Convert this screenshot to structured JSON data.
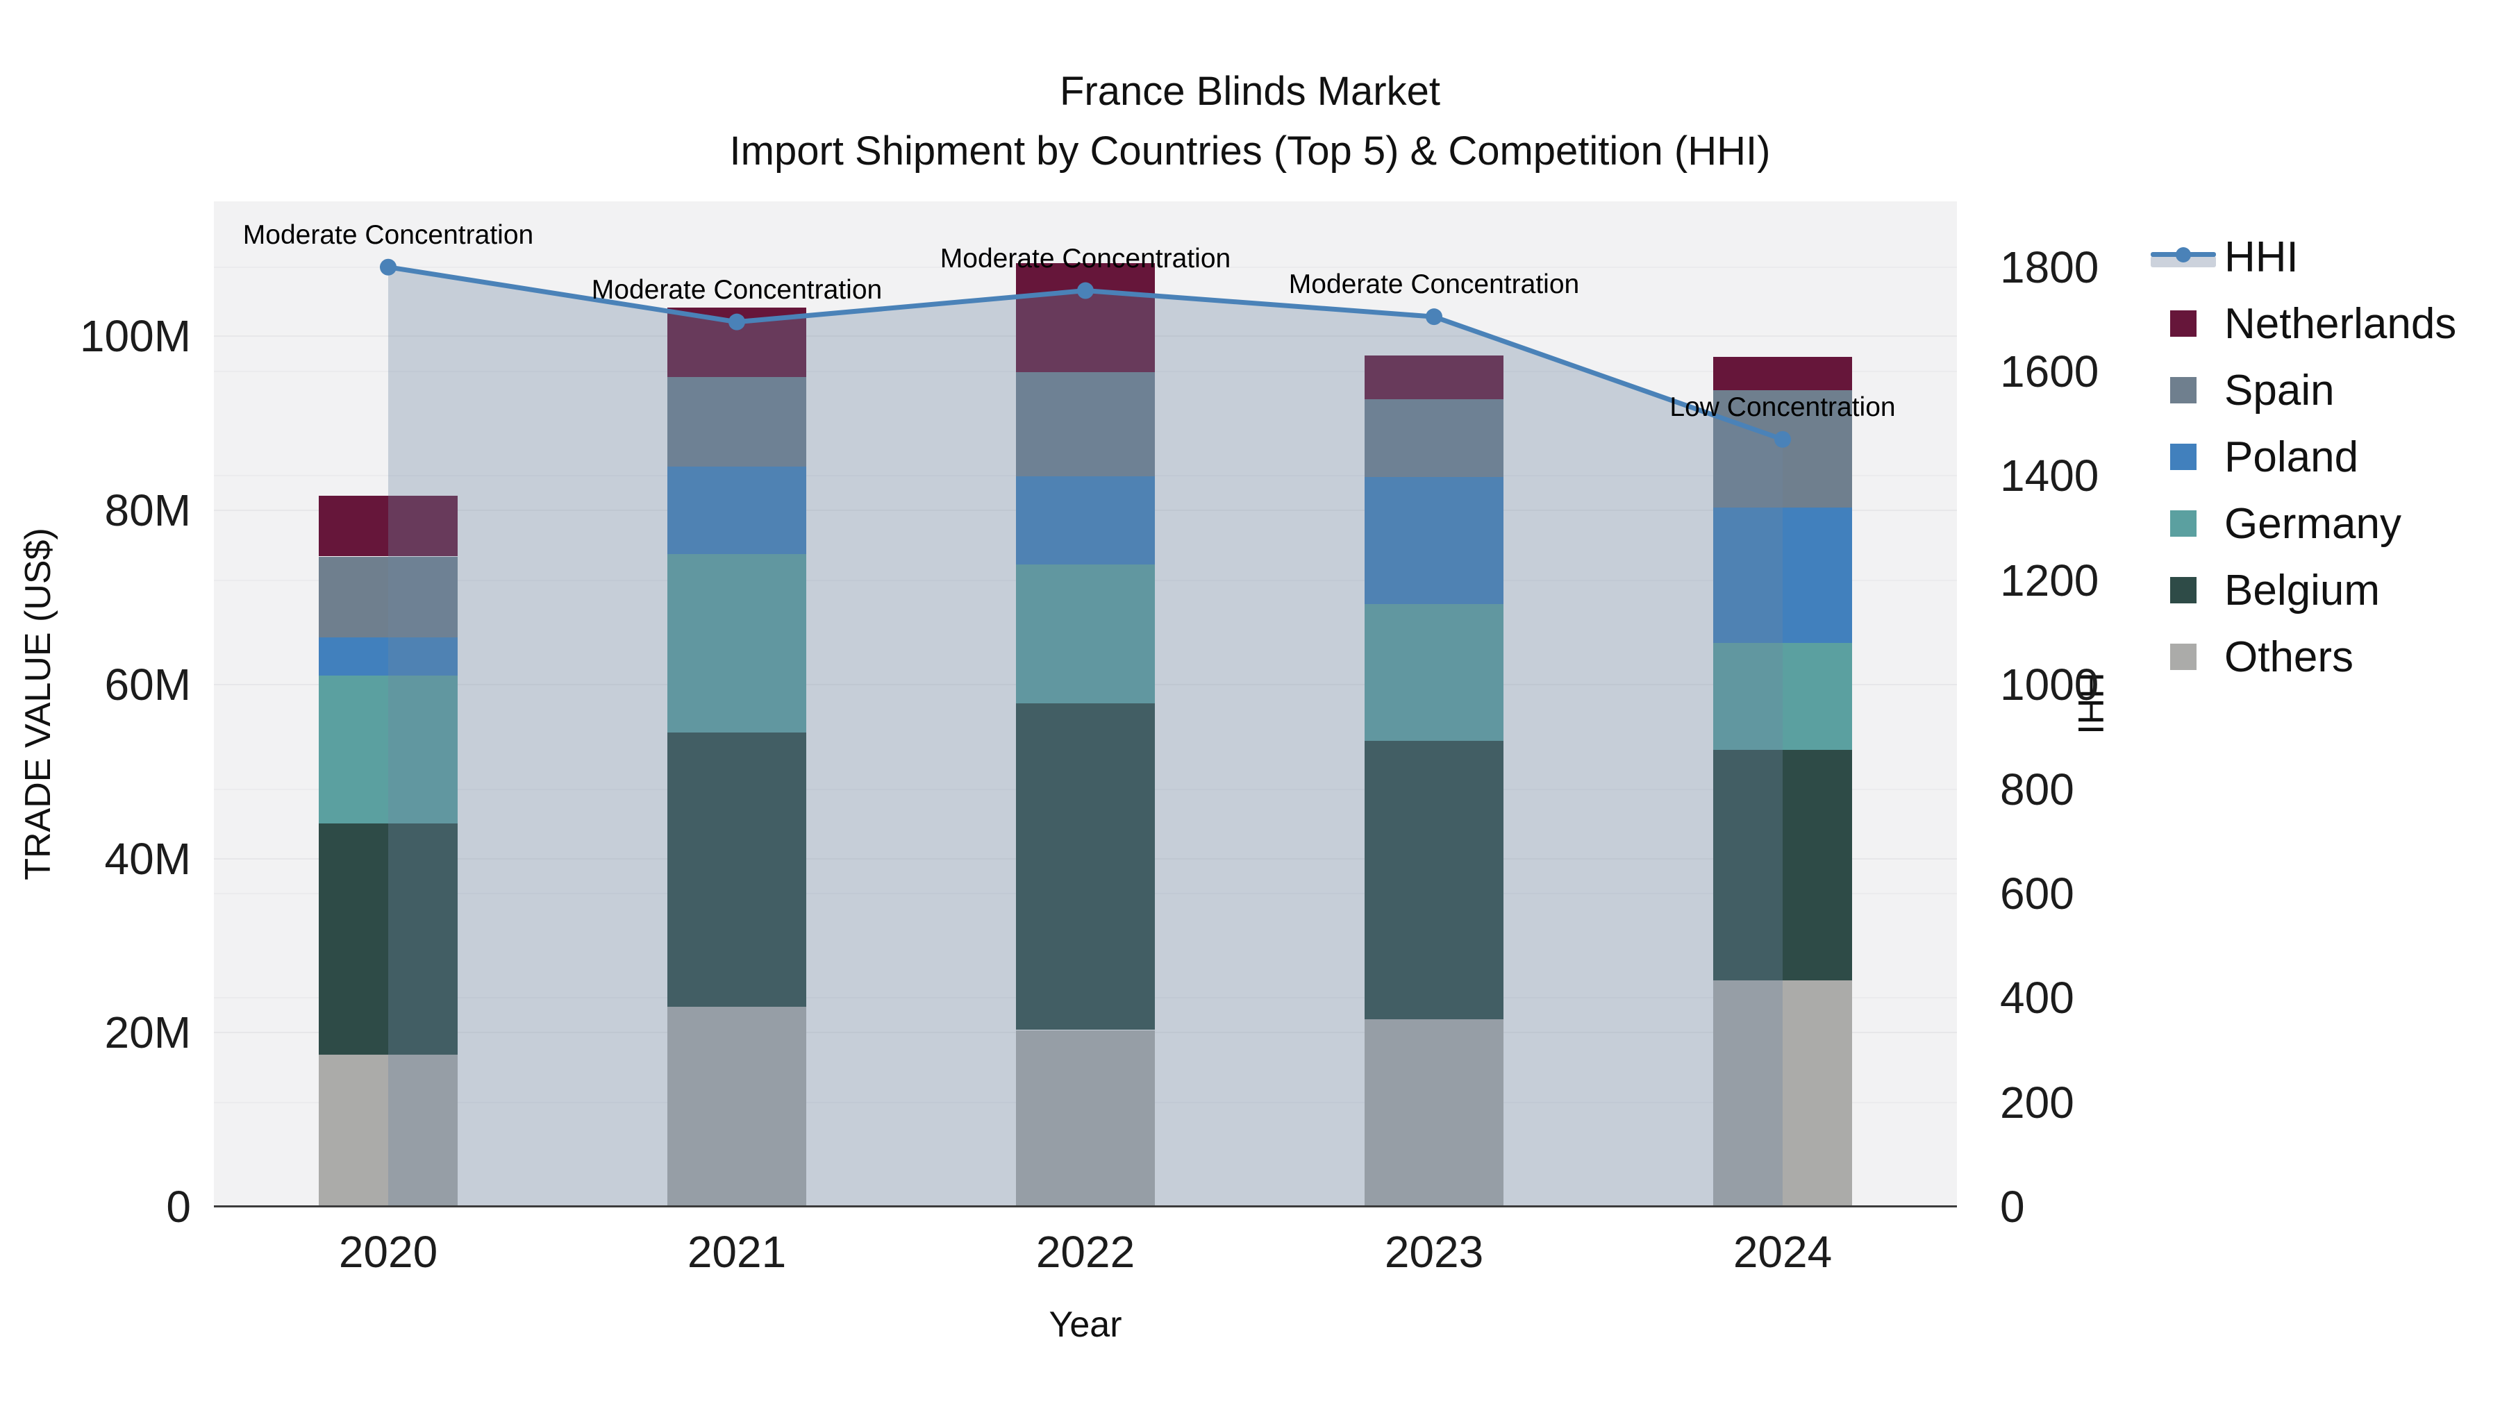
{
  "figure": {
    "title_line1": "France Blinds Market",
    "title_line2": "Import Shipment by Countries (Top 5) & Competition (HHI)"
  },
  "axes": {
    "left": {
      "title": "TRADE VALUE (US$)",
      "ticks": [
        {
          "label": "0",
          "value": 0
        },
        {
          "label": "20M",
          "value": 20
        },
        {
          "label": "40M",
          "value": 40
        },
        {
          "label": "60M",
          "value": 60
        },
        {
          "label": "80M",
          "value": 80
        },
        {
          "label": "100M",
          "value": 100
        }
      ]
    },
    "right": {
      "title": "HHI",
      "ticks": [
        {
          "label": "0",
          "value": 0
        },
        {
          "label": "200",
          "value": 200
        },
        {
          "label": "400",
          "value": 400
        },
        {
          "label": "600",
          "value": 600
        },
        {
          "label": "800",
          "value": 800
        },
        {
          "label": "1000",
          "value": 1000
        },
        {
          "label": "1200",
          "value": 1200
        },
        {
          "label": "1400",
          "value": 1400
        },
        {
          "label": "1600",
          "value": 1600
        },
        {
          "label": "1800",
          "value": 1800
        }
      ]
    },
    "x": {
      "title": "Year",
      "ticks": [
        "2020",
        "2021",
        "2022",
        "2023",
        "2024"
      ]
    }
  },
  "legend": {
    "items": [
      {
        "label": "HHI",
        "type": "line",
        "color": "#4a82b8"
      },
      {
        "label": "Netherlands",
        "type": "swatch",
        "color": "#66163a"
      },
      {
        "label": "Spain",
        "type": "swatch",
        "color": "#6f7f8e"
      },
      {
        "label": "Poland",
        "type": "swatch",
        "color": "#4180bd"
      },
      {
        "label": "Germany",
        "type": "swatch",
        "color": "#5ba0a0"
      },
      {
        "label": "Belgium",
        "type": "swatch",
        "color": "#2e4b47"
      },
      {
        "label": "Others",
        "type": "swatch",
        "color": "#ababa9"
      }
    ]
  },
  "chart_data": {
    "type": "combo-stacked-bar-line",
    "title": "France Blinds Market — Import Shipment by Countries (Top 5) & Competition (HHI)",
    "categories": [
      "2020",
      "2021",
      "2022",
      "2023",
      "2024"
    ],
    "xlabel": "Year",
    "ylabel_left": "TRADE VALUE (US$)",
    "ylabel_right": "HHI",
    "values_unit": "million US$",
    "ylim_left_millions": [
      0,
      115.5
    ],
    "ylim_right": [
      0,
      1926
    ],
    "grid": true,
    "legend_position": "right",
    "bar_series_bottom_to_top": [
      {
        "name": "Others",
        "color": "#ababa9",
        "values_millions": [
          17.5,
          23.0,
          20.3,
          21.5,
          26.0
        ]
      },
      {
        "name": "Belgium",
        "color": "#2e4b47",
        "values_millions": [
          26.5,
          31.5,
          37.5,
          32.0,
          26.5
        ]
      },
      {
        "name": "Germany",
        "color": "#5ba0a0",
        "values_millions": [
          17.0,
          20.5,
          16.0,
          15.7,
          12.3
        ]
      },
      {
        "name": "Poland",
        "color": "#4180bd",
        "values_millions": [
          4.4,
          10.0,
          10.1,
          14.6,
          15.5
        ]
      },
      {
        "name": "Spain",
        "color": "#6f7f8e",
        "values_millions": [
          9.3,
          10.3,
          12.0,
          9.0,
          13.5
        ]
      },
      {
        "name": "Netherlands",
        "color": "#66163a",
        "values_millions": [
          7.0,
          8.0,
          12.5,
          5.0,
          3.8
        ]
      }
    ],
    "bar_totals_millions": [
      81.7,
      103.3,
      108.4,
      97.8,
      97.6
    ],
    "line_series": {
      "name": "HHI",
      "axis": "right",
      "color": "#4a82b8",
      "fill_color": "rgba(110,135,160,0.33)",
      "values": [
        1800,
        1695,
        1755,
        1705,
        1470
      ]
    },
    "annotations": [
      {
        "x": "2020",
        "text": "Moderate Concentration"
      },
      {
        "x": "2021",
        "text": "Moderate Concentration"
      },
      {
        "x": "2022",
        "text": "Moderate Concentration"
      },
      {
        "x": "2023",
        "text": "Moderate Concentration"
      },
      {
        "x": "2024",
        "text": "Low Concentration"
      }
    ]
  }
}
